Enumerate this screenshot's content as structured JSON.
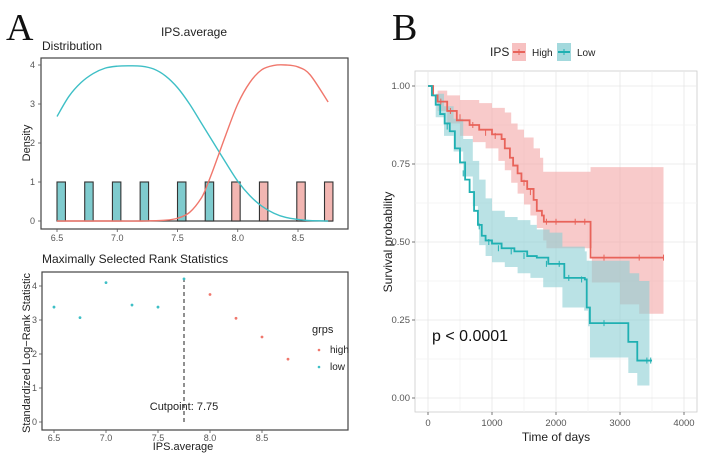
{
  "panels": {
    "A_letter": "A",
    "B_letter": "B"
  },
  "chart_data": [
    {
      "id": "distribution",
      "type": "histogram+density",
      "super_title": "IPS.average",
      "title": "Distribution",
      "xlabel": "",
      "ylabel": "Density",
      "xlim": [
        6.5,
        8.8
      ],
      "ylim": [
        0,
        4
      ],
      "xticks": [
        "6.5",
        "7.0",
        "7.5",
        "8.0",
        "8.5"
      ],
      "xtick_values": [
        6.5,
        7.0,
        7.5,
        8.0,
        8.5
      ],
      "yticks": [
        "0",
        "1",
        "2",
        "3",
        "4"
      ],
      "ytick_values": [
        0,
        1,
        2,
        3,
        4
      ],
      "bars": [
        {
          "x": 6.5,
          "value": 1,
          "group": "low"
        },
        {
          "x": 6.73,
          "value": 1,
          "group": "low"
        },
        {
          "x": 6.96,
          "value": 1,
          "group": "low"
        },
        {
          "x": 7.19,
          "value": 1,
          "group": "low"
        },
        {
          "x": 7.5,
          "value": 1,
          "group": "low"
        },
        {
          "x": 7.73,
          "value": 1,
          "group": "low"
        },
        {
          "x": 7.95,
          "value": 1,
          "group": "high"
        },
        {
          "x": 8.18,
          "value": 1,
          "group": "high"
        },
        {
          "x": 8.49,
          "value": 1,
          "group": "high"
        },
        {
          "x": 8.72,
          "value": 1,
          "group": "high"
        }
      ],
      "bar_width": 0.07,
      "series": [
        {
          "name": "low",
          "color": "#3EBFC6",
          "x": [
            6.5,
            6.6,
            6.7,
            6.8,
            6.9,
            7.0,
            7.1,
            7.2,
            7.3,
            7.4,
            7.5,
            7.6,
            7.7,
            7.8,
            7.9,
            8.0,
            8.1,
            8.2,
            8.3,
            8.4,
            8.5,
            8.6,
            8.75
          ],
          "y": [
            2.68,
            3.2,
            3.55,
            3.78,
            3.92,
            3.97,
            3.98,
            3.97,
            3.9,
            3.72,
            3.42,
            3.0,
            2.5,
            2.0,
            1.5,
            1.02,
            0.65,
            0.38,
            0.2,
            0.09,
            0.04,
            0.01,
            0.0
          ]
        },
        {
          "name": "high",
          "color": "#F0776C",
          "x": [
            6.5,
            6.8,
            7.0,
            7.2,
            7.4,
            7.5,
            7.6,
            7.7,
            7.75,
            7.8,
            7.9,
            8.0,
            8.1,
            8.2,
            8.3,
            8.4,
            8.5,
            8.6,
            8.75
          ],
          "y": [
            0,
            0,
            0,
            0,
            0.02,
            0.07,
            0.22,
            0.6,
            0.95,
            1.35,
            2.2,
            3.0,
            3.55,
            3.88,
            3.99,
            4.0,
            3.95,
            3.75,
            3.05
          ]
        }
      ]
    },
    {
      "id": "maxstat",
      "type": "scatter",
      "title": "Maximally Selected Rank Statistics",
      "xlabel": "IPS.average",
      "ylabel": "Standardized Log−Rank Statistic",
      "xlim": [
        6.5,
        8.75
      ],
      "ylim": [
        0,
        4.2
      ],
      "xticks": [
        "6.5",
        "7.0",
        "7.5",
        "8.0",
        "8.5"
      ],
      "xtick_values": [
        6.5,
        7.0,
        7.5,
        8.0,
        8.5
      ],
      "yticks": [
        "0",
        "1",
        "2",
        "3",
        "4"
      ],
      "ytick_values": [
        0,
        1,
        2,
        3,
        4
      ],
      "cutpoint": 7.75,
      "cutpoint_label": "Cutpoint: 7.75",
      "legend_title": "grps",
      "legend_position": "right",
      "series": [
        {
          "name": "high",
          "color": "#F0776C",
          "points": [
            [
              8.0,
              3.75
            ],
            [
              8.25,
              3.05
            ],
            [
              8.5,
              2.5
            ],
            [
              8.75,
              1.85
            ]
          ]
        },
        {
          "name": "low",
          "color": "#3EBFC6",
          "points": [
            [
              6.5,
              3.38
            ],
            [
              6.75,
              3.07
            ],
            [
              7.0,
              4.1
            ],
            [
              7.25,
              3.44
            ],
            [
              7.5,
              3.38
            ],
            [
              7.75,
              4.21
            ]
          ]
        }
      ]
    },
    {
      "id": "km",
      "type": "line",
      "subtype": "kaplan-meier",
      "title": "",
      "xlabel": "Time of days",
      "ylabel": "Survival probability",
      "xlim": [
        0,
        4000
      ],
      "ylim": [
        0,
        1
      ],
      "xticks": [
        "0",
        "1000",
        "2000",
        "3000",
        "4000"
      ],
      "xtick_values": [
        0,
        1000,
        2000,
        3000,
        4000
      ],
      "yticks": [
        "0.00",
        "0.25",
        "0.50",
        "0.75",
        "1.00"
      ],
      "ytick_values": [
        0,
        0.25,
        0.5,
        0.75,
        1.0
      ],
      "grid": true,
      "legend_title": "IPS",
      "legend_position": "top",
      "annotation": "p < 0.0001",
      "series": [
        {
          "name": "High",
          "color": "#E8635A",
          "fill": "#F3A6A6",
          "steps": [
            [
              0,
              1.0
            ],
            [
              80,
              0.97
            ],
            [
              150,
              0.95
            ],
            [
              300,
              0.92
            ],
            [
              450,
              0.89
            ],
            [
              650,
              0.875
            ],
            [
              800,
              0.86
            ],
            [
              1000,
              0.845
            ],
            [
              1150,
              0.83
            ],
            [
              1200,
              0.8
            ],
            [
              1280,
              0.77
            ],
            [
              1330,
              0.745
            ],
            [
              1400,
              0.72
            ],
            [
              1460,
              0.695
            ],
            [
              1550,
              0.67
            ],
            [
              1650,
              0.635
            ],
            [
              1700,
              0.6
            ],
            [
              1780,
              0.585
            ],
            [
              1810,
              0.565
            ],
            [
              2540,
              0.45
            ],
            [
              3680,
              0.45
            ]
          ],
          "upper": [
            [
              0,
              1.0
            ],
            [
              150,
              0.985
            ],
            [
              300,
              0.97
            ],
            [
              500,
              0.955
            ],
            [
              800,
              0.945
            ],
            [
              1000,
              0.93
            ],
            [
              1200,
              0.915
            ],
            [
              1300,
              0.88
            ],
            [
              1400,
              0.86
            ],
            [
              1500,
              0.835
            ],
            [
              1650,
              0.8
            ],
            [
              1750,
              0.77
            ],
            [
              1800,
              0.725
            ],
            [
              2500,
              0.725
            ],
            [
              2540,
              0.74
            ],
            [
              3680,
              0.74
            ]
          ],
          "lower": [
            [
              0,
              1.0
            ],
            [
              150,
              0.92
            ],
            [
              300,
              0.88
            ],
            [
              500,
              0.84
            ],
            [
              700,
              0.82
            ],
            [
              900,
              0.8
            ],
            [
              1100,
              0.76
            ],
            [
              1200,
              0.73
            ],
            [
              1300,
              0.69
            ],
            [
              1400,
              0.655
            ],
            [
              1500,
              0.62
            ],
            [
              1600,
              0.585
            ],
            [
              1700,
              0.545
            ],
            [
              1800,
              0.505
            ],
            [
              1850,
              0.48
            ],
            [
              2540,
              0.48
            ],
            [
              2560,
              0.37
            ],
            [
              3000,
              0.3
            ],
            [
              3300,
              0.27
            ],
            [
              3680,
              0.27
            ]
          ],
          "censor": [
            [
              200,
              0.95
            ],
            [
              350,
              0.92
            ],
            [
              500,
              0.9
            ],
            [
              700,
              0.875
            ],
            [
              900,
              0.85
            ],
            [
              1050,
              0.84
            ],
            [
              1500,
              0.69
            ],
            [
              1600,
              0.66
            ],
            [
              1850,
              0.565
            ],
            [
              2000,
              0.565
            ],
            [
              2300,
              0.565
            ],
            [
              2450,
              0.565
            ],
            [
              2750,
              0.45
            ],
            [
              3300,
              0.45
            ],
            [
              3680,
              0.45
            ]
          ]
        },
        {
          "name": "Low",
          "color": "#1FB0B2",
          "fill": "#8CCFD4",
          "steps": [
            [
              0,
              1.0
            ],
            [
              60,
              0.97
            ],
            [
              120,
              0.94
            ],
            [
              190,
              0.91
            ],
            [
              260,
              0.88
            ],
            [
              340,
              0.855
            ],
            [
              420,
              0.8
            ],
            [
              500,
              0.755
            ],
            [
              580,
              0.7
            ],
            [
              650,
              0.66
            ],
            [
              720,
              0.6
            ],
            [
              780,
              0.555
            ],
            [
              840,
              0.52
            ],
            [
              900,
              0.505
            ],
            [
              1000,
              0.495
            ],
            [
              1150,
              0.48
            ],
            [
              1350,
              0.47
            ],
            [
              1550,
              0.455
            ],
            [
              1700,
              0.45
            ],
            [
              1880,
              0.43
            ],
            [
              2130,
              0.385
            ],
            [
              2450,
              0.38
            ],
            [
              2480,
              0.29
            ],
            [
              2530,
              0.24
            ],
            [
              3130,
              0.18
            ],
            [
              3270,
              0.12
            ],
            [
              3500,
              0.12
            ]
          ],
          "upper": [
            [
              0,
              1.0
            ],
            [
              120,
              0.975
            ],
            [
              250,
              0.935
            ],
            [
              400,
              0.895
            ],
            [
              550,
              0.83
            ],
            [
              700,
              0.76
            ],
            [
              800,
              0.7
            ],
            [
              900,
              0.64
            ],
            [
              1000,
              0.6
            ],
            [
              1200,
              0.58
            ],
            [
              1400,
              0.57
            ],
            [
              1600,
              0.555
            ],
            [
              1700,
              0.54
            ],
            [
              1900,
              0.53
            ],
            [
              2100,
              0.485
            ],
            [
              2450,
              0.47
            ],
            [
              2480,
              0.44
            ],
            [
              3100,
              0.44
            ],
            [
              3150,
              0.4
            ],
            [
              3300,
              0.375
            ],
            [
              3460,
              0.375
            ]
          ],
          "lower": [
            [
              0,
              1.0
            ],
            [
              120,
              0.9
            ],
            [
              250,
              0.84
            ],
            [
              400,
              0.79
            ],
            [
              550,
              0.71
            ],
            [
              700,
              0.615
            ],
            [
              780,
              0.55
            ],
            [
              800,
              0.49
            ],
            [
              900,
              0.455
            ],
            [
              1000,
              0.435
            ],
            [
              1200,
              0.42
            ],
            [
              1400,
              0.4
            ],
            [
              1600,
              0.385
            ],
            [
              1800,
              0.355
            ],
            [
              2100,
              0.29
            ],
            [
              2440,
              0.28
            ],
            [
              2500,
              0.23
            ],
            [
              2530,
              0.13
            ],
            [
              3130,
              0.08
            ],
            [
              3270,
              0.04
            ],
            [
              3460,
              0.04
            ]
          ],
          "censor": [
            [
              300,
              0.87
            ],
            [
              550,
              0.72
            ],
            [
              800,
              0.55
            ],
            [
              950,
              0.5
            ],
            [
              1100,
              0.48
            ],
            [
              1300,
              0.47
            ],
            [
              1500,
              0.455
            ],
            [
              1850,
              0.43
            ],
            [
              2050,
              0.43
            ],
            [
              2200,
              0.385
            ],
            [
              2400,
              0.38
            ],
            [
              2750,
              0.24
            ],
            [
              3420,
              0.12
            ],
            [
              3480,
              0.12
            ]
          ]
        }
      ]
    }
  ]
}
